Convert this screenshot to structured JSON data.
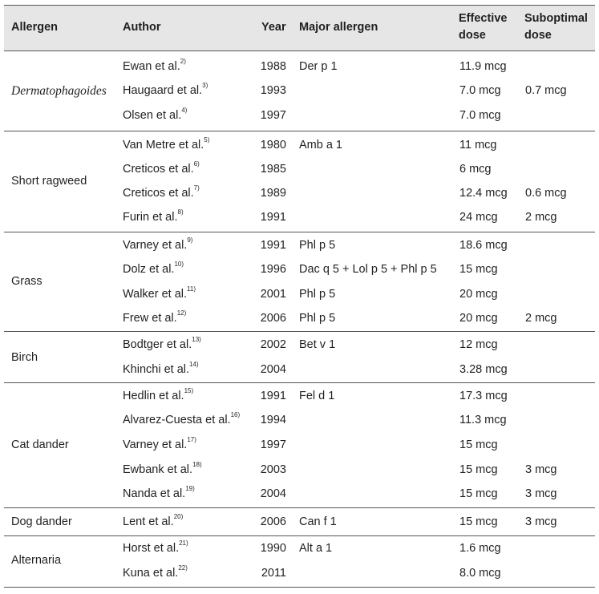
{
  "headers": {
    "allergen": "Allergen",
    "author": "Author",
    "year": "Year",
    "major": "Major allergen",
    "effective": [
      "Effective",
      "dose"
    ],
    "suboptimal": [
      "Suboptimal",
      "dose"
    ]
  },
  "groups": [
    {
      "name": "Dermatophagoides",
      "italic": true,
      "rows": [
        {
          "author": "Ewan et al.",
          "ref": "2)",
          "year": "1988",
          "major": "Der p 1",
          "effective": "11.9 mcg",
          "suboptimal": ""
        },
        {
          "author": "Haugaard et al.",
          "ref": "3)",
          "year": "1993",
          "major": "",
          "effective": "7.0 mcg",
          "suboptimal": "0.7 mcg"
        },
        {
          "author": "Olsen et al.",
          "ref": "4)",
          "year": "1997",
          "major": "",
          "effective": "7.0 mcg",
          "suboptimal": ""
        }
      ]
    },
    {
      "name": "Short ragweed",
      "italic": false,
      "rows": [
        {
          "author": "Van Metre et al.",
          "ref": "5)",
          "year": "1980",
          "major": "Amb a 1",
          "effective": "11 mcg",
          "suboptimal": ""
        },
        {
          "author": "Creticos et al.",
          "ref": "6)",
          "year": "1985",
          "major": "",
          "effective": "6 mcg",
          "suboptimal": ""
        },
        {
          "author": "Creticos et al.",
          "ref": "7)",
          "year": "1989",
          "major": "",
          "effective": "12.4 mcg",
          "suboptimal": "0.6 mcg"
        },
        {
          "author": "Furin et al.",
          "ref": "8)",
          "year": "1991",
          "major": "",
          "effective": "24 mcg",
          "suboptimal": "2 mcg"
        }
      ]
    },
    {
      "name": "Grass",
      "italic": false,
      "rows": [
        {
          "author": "Varney et al.",
          "ref": "9)",
          "year": "1991",
          "major": "Phl p 5",
          "effective": "18.6 mcg",
          "suboptimal": ""
        },
        {
          "author": "Dolz et al.",
          "ref": "10)",
          "year": "1996",
          "major": "Dac q 5 + Lol p 5 + Phl p 5",
          "effective": "15 mcg",
          "suboptimal": ""
        },
        {
          "author": "Walker et al.",
          "ref": "11)",
          "year": "2001",
          "major": "Phl p 5",
          "effective": "20 mcg",
          "suboptimal": ""
        },
        {
          "author": "Frew et al.",
          "ref": "12)",
          "year": "2006",
          "major": "Phl p 5",
          "effective": "20 mcg",
          "suboptimal": "2 mcg"
        }
      ]
    },
    {
      "name": "Birch",
      "italic": false,
      "rows": [
        {
          "author": "Bodtger et al.",
          "ref": "13)",
          "year": "2002",
          "major": "Bet v 1",
          "effective": "12 mcg",
          "suboptimal": ""
        },
        {
          "author": "Khinchi et al.",
          "ref": "14)",
          "year": "2004",
          "major": "",
          "effective": "3.28 mcg",
          "suboptimal": ""
        }
      ]
    },
    {
      "name": "Cat dander",
      "italic": false,
      "rows": [
        {
          "author": "Hedlin et al.",
          "ref": "15)",
          "year": "1991",
          "major": "Fel d 1",
          "effective": "17.3 mcg",
          "suboptimal": ""
        },
        {
          "author": "Alvarez-Cuesta et al.",
          "ref": "16)",
          "year": "1994",
          "major": "",
          "effective": "11.3 mcg",
          "suboptimal": ""
        },
        {
          "author": "Varney et al.",
          "ref": "17)",
          "year": "1997",
          "major": "",
          "effective": "15 mcg",
          "suboptimal": ""
        },
        {
          "author": "Ewbank et al.",
          "ref": "18)",
          "year": "2003",
          "major": "",
          "effective": "15 mcg",
          "suboptimal": "3 mcg"
        },
        {
          "author": "Nanda et al.",
          "ref": "19)",
          "year": "2004",
          "major": "",
          "effective": "15 mcg",
          "suboptimal": "3 mcg"
        }
      ]
    },
    {
      "name": "Dog dander",
      "italic": false,
      "rows": [
        {
          "author": "Lent et al.",
          "ref": "20)",
          "year": "2006",
          "major": "Can f 1",
          "effective": "15 mcg",
          "suboptimal": "3 mcg"
        }
      ]
    },
    {
      "name": "Alternaria",
      "italic": false,
      "rows": [
        {
          "author": "Horst et al.",
          "ref": "21)",
          "year": "1990",
          "major": "Alt a 1",
          "effective": "1.6 mcg",
          "suboptimal": ""
        },
        {
          "author": "Kuna et al.",
          "ref": "22)",
          "year": "2011",
          "major": "",
          "effective": "8.0 mcg",
          "suboptimal": ""
        }
      ]
    }
  ]
}
